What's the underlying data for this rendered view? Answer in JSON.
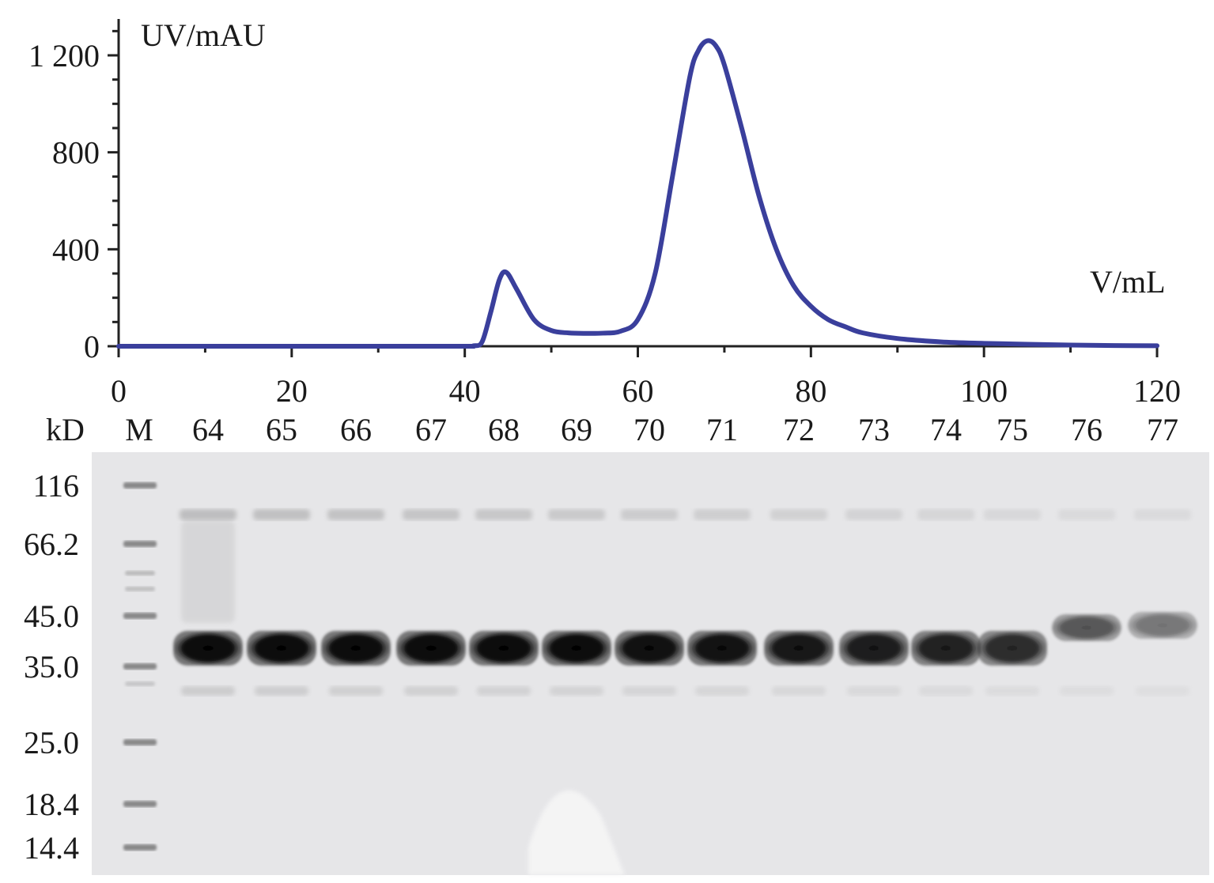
{
  "chart_data": [
    {
      "type": "line",
      "title": "",
      "xlabel": "V/mL",
      "ylabel": "UV/mAU",
      "xlim": [
        0,
        120
      ],
      "ylim": [
        0,
        1350
      ],
      "x_ticks": [
        "0",
        "20",
        "40",
        "60",
        "80",
        "100",
        "120"
      ],
      "x_tick_values": [
        0,
        20,
        40,
        60,
        80,
        100,
        120
      ],
      "y_ticks": [
        "0",
        "400",
        "800",
        "1 200"
      ],
      "y_tick_values": [
        0,
        400,
        800,
        1200
      ],
      "grid": false,
      "series": [
        {
          "color": "#3a3f9c",
          "x": [
            0,
            10,
            20,
            30,
            40,
            41,
            42,
            43,
            44,
            44.8,
            46,
            48,
            50,
            52,
            54,
            56,
            58,
            60,
            62,
            64,
            66,
            67,
            68,
            69,
            70,
            72,
            74,
            76,
            78,
            80,
            82,
            84,
            86,
            90,
            95,
            100,
            105,
            110,
            115,
            120
          ],
          "y": [
            0,
            0,
            0,
            0,
            0,
            2,
            18,
            140,
            275,
            305,
            235,
            110,
            65,
            55,
            53,
            54,
            62,
            110,
            300,
            700,
            1110,
            1220,
            1260,
            1240,
            1160,
            900,
            620,
            400,
            250,
            165,
            110,
            80,
            55,
            32,
            18,
            12,
            8,
            5,
            3,
            2
          ]
        }
      ]
    },
    {
      "type": "table",
      "title": "",
      "unit_label": "kD",
      "lanes": [
        "M",
        "64",
        "65",
        "66",
        "67",
        "68",
        "69",
        "70",
        "71",
        "72",
        "73",
        "74",
        "75",
        "76",
        "77"
      ],
      "marker_sizes": [
        "116",
        "66.2",
        "45.0",
        "35.0",
        "25.0",
        "18.4",
        "14.4"
      ],
      "main_band_intensity": [
        0,
        1.0,
        1.0,
        1.0,
        1.0,
        1.0,
        1.0,
        0.98,
        0.97,
        0.95,
        0.92,
        0.9,
        0.85,
        0.65,
        0.5
      ]
    }
  ],
  "colors": {
    "trace": "#3a3f9c",
    "gel_background": "#e6e6e8",
    "band": "#0c0c0c",
    "marker": "#6a6a6a"
  }
}
